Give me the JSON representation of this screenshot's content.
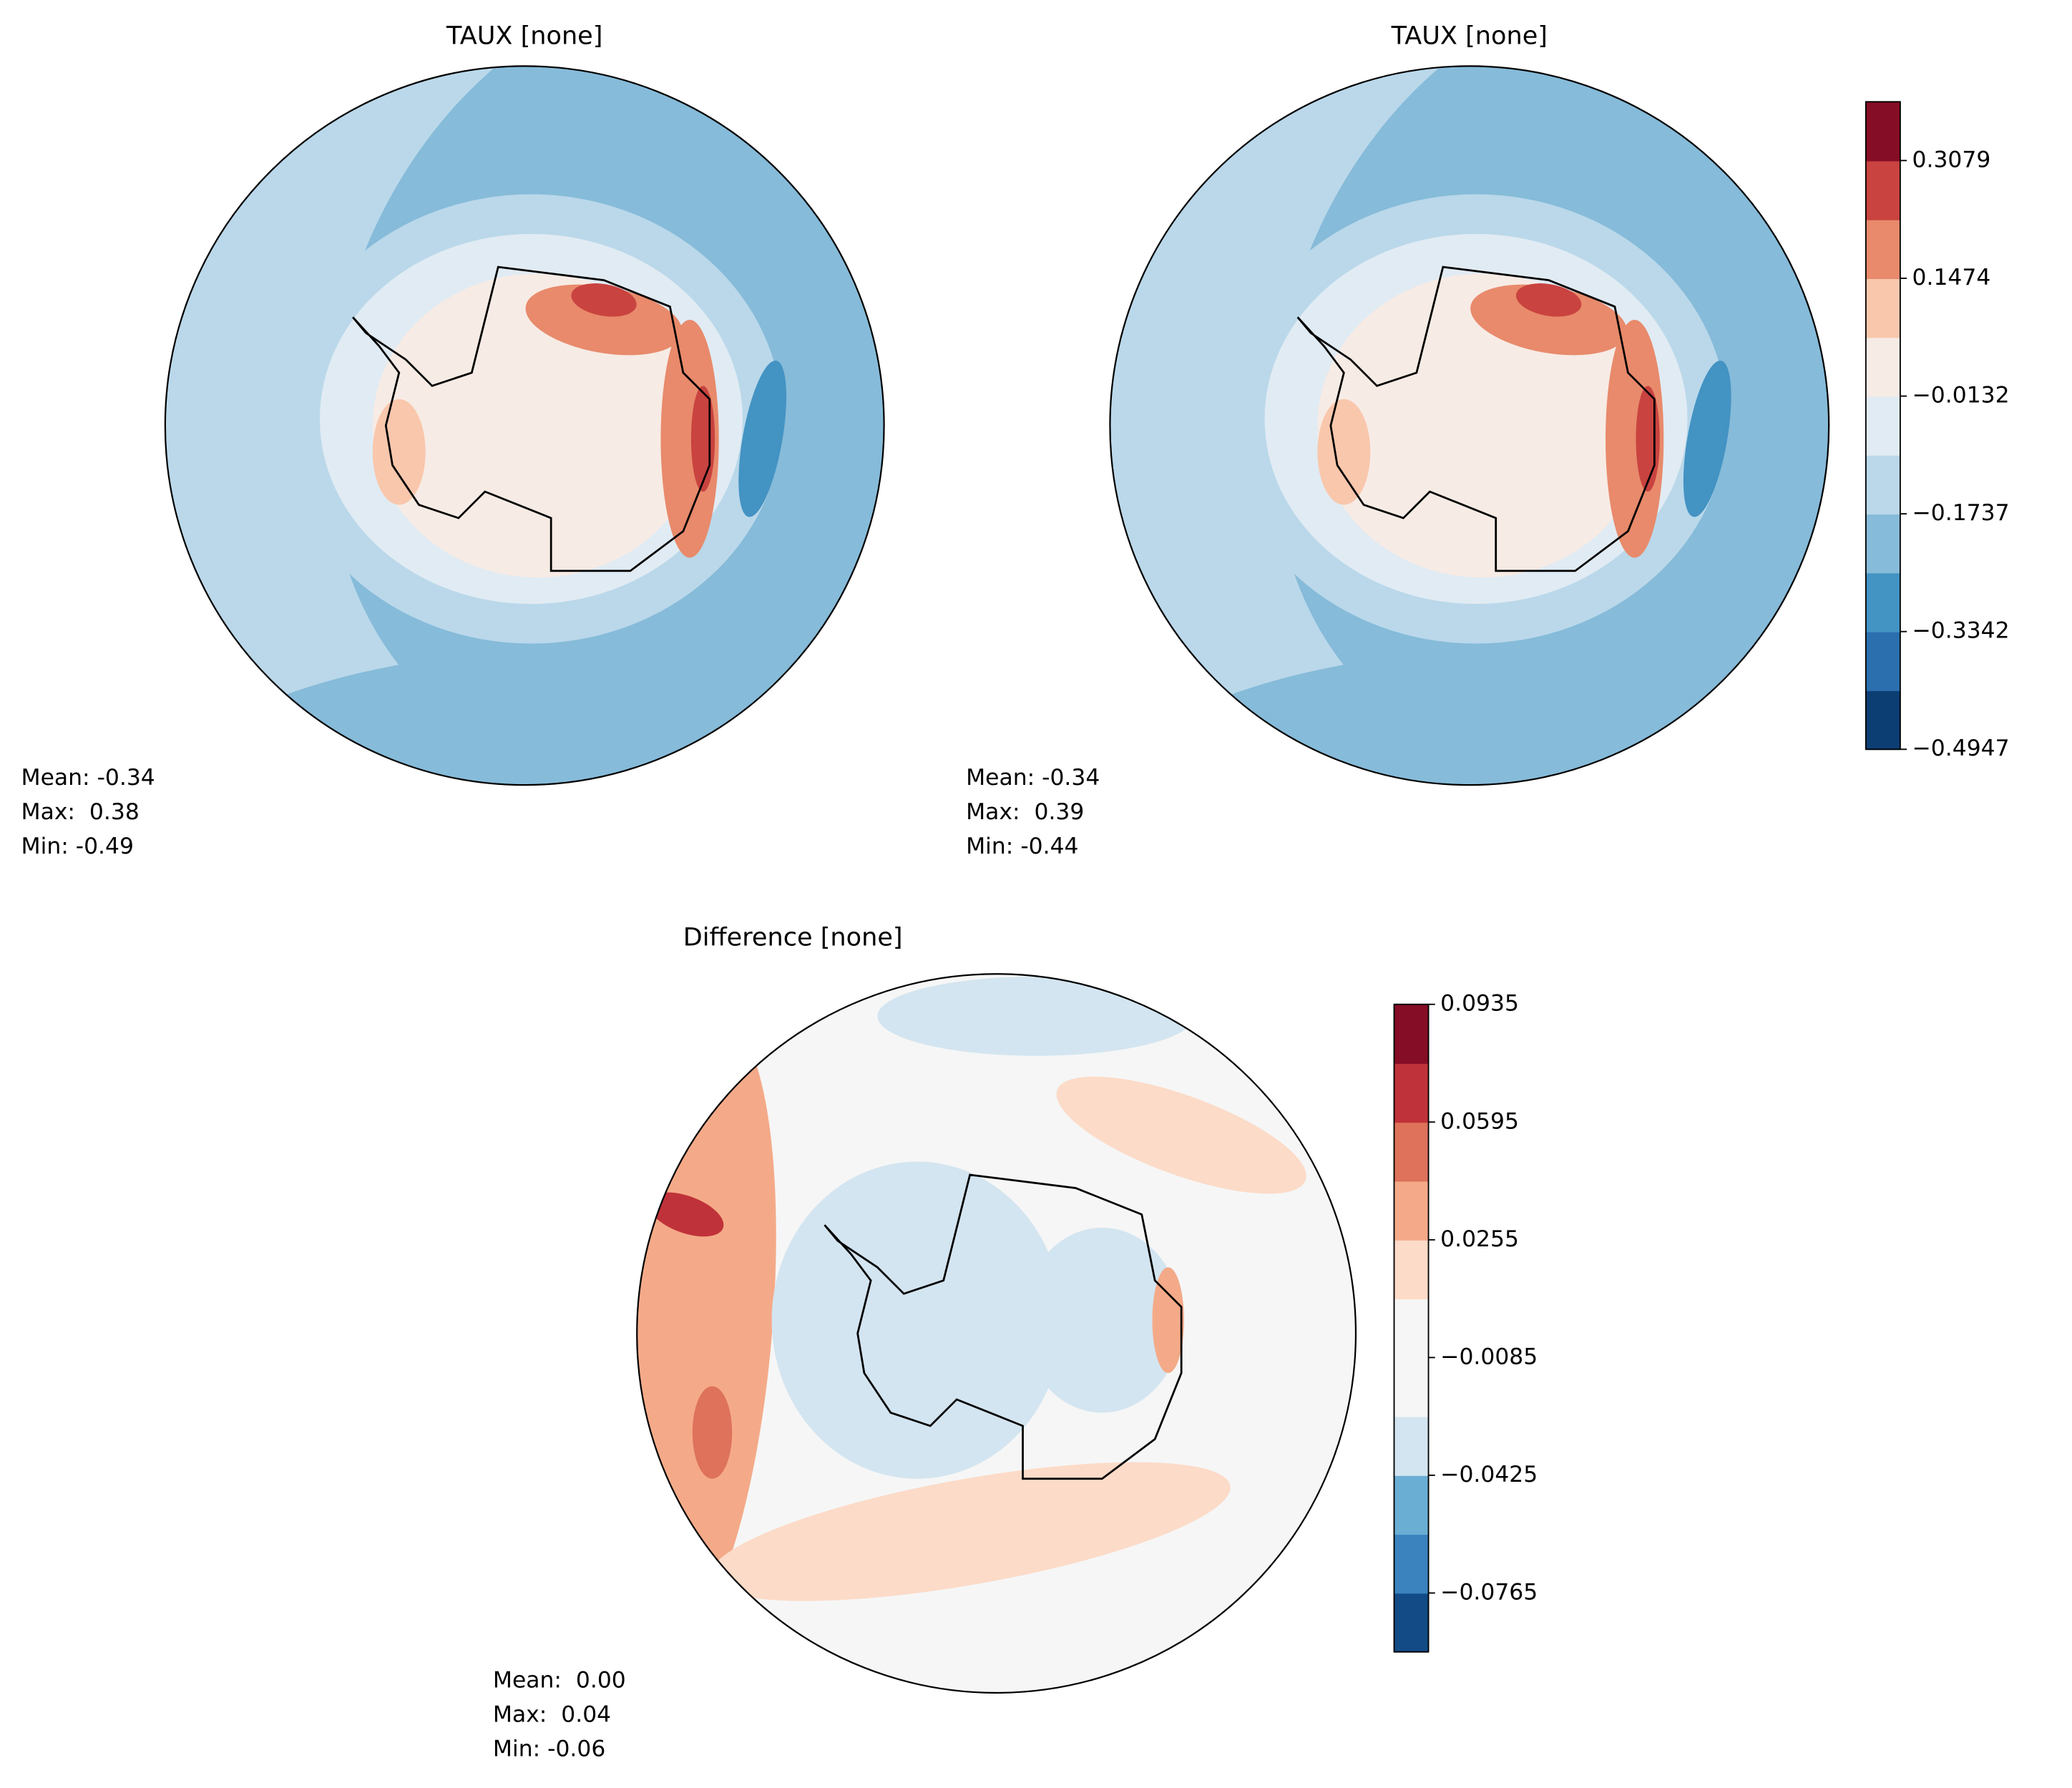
{
  "chart_data": [
    {
      "type": "map",
      "title": "TAUX [none]",
      "stats": [
        "Mean: -0.34",
        "Max:  0.38",
        "Min: -0.49"
      ]
    },
    {
      "type": "map",
      "title": "TAUX [none]",
      "stats": [
        "Mean: -0.34",
        "Max:  0.39",
        "Min: -0.44"
      ],
      "colorbar": {
        "clim": [
          -0.4947,
          0.388
        ],
        "colors": [
          "#0c3e74",
          "#2b6faf",
          "#4393c3",
          "#86bbd9",
          "#bad8ea",
          "#e1ebf3",
          "#f7ebe5",
          "#f9c7ac",
          "#e88a6b",
          "#c94340",
          "#860d26"
        ],
        "ticks": [
          {
            "value": -0.4947,
            "label": "−0.4947"
          },
          {
            "value": -0.3342,
            "label": "−0.3342"
          },
          {
            "value": -0.1737,
            "label": "−0.1737"
          },
          {
            "value": -0.0132,
            "label": "−0.0132"
          },
          0.1474,
          0.3079
        ]
      }
    },
    {
      "type": "map",
      "title": "Difference [none]",
      "stats": [
        "Mean:  0.00",
        "Max:  0.04",
        "Min: -0.06"
      ],
      "colorbar": {
        "clim": [
          -0.0935,
          0.0935
        ],
        "colors": [
          "#124b85",
          "#3a83be",
          "#6aaed4",
          "#d3e5f0",
          "#f6f6f6",
          "#f6f6f6",
          "#fcdbc8",
          "#f4aa88",
          "#de725b",
          "#c0323a",
          "#860d26"
        ],
        "ticks": [
          {
            "value": -0.0765,
            "label": "−0.0765"
          },
          {
            "value": -0.0425,
            "label": "−0.0425"
          },
          {
            "value": -0.0085,
            "label": "−0.0085"
          },
          0.0255,
          0.0595,
          0.0935
        ]
      }
    }
  ]
}
